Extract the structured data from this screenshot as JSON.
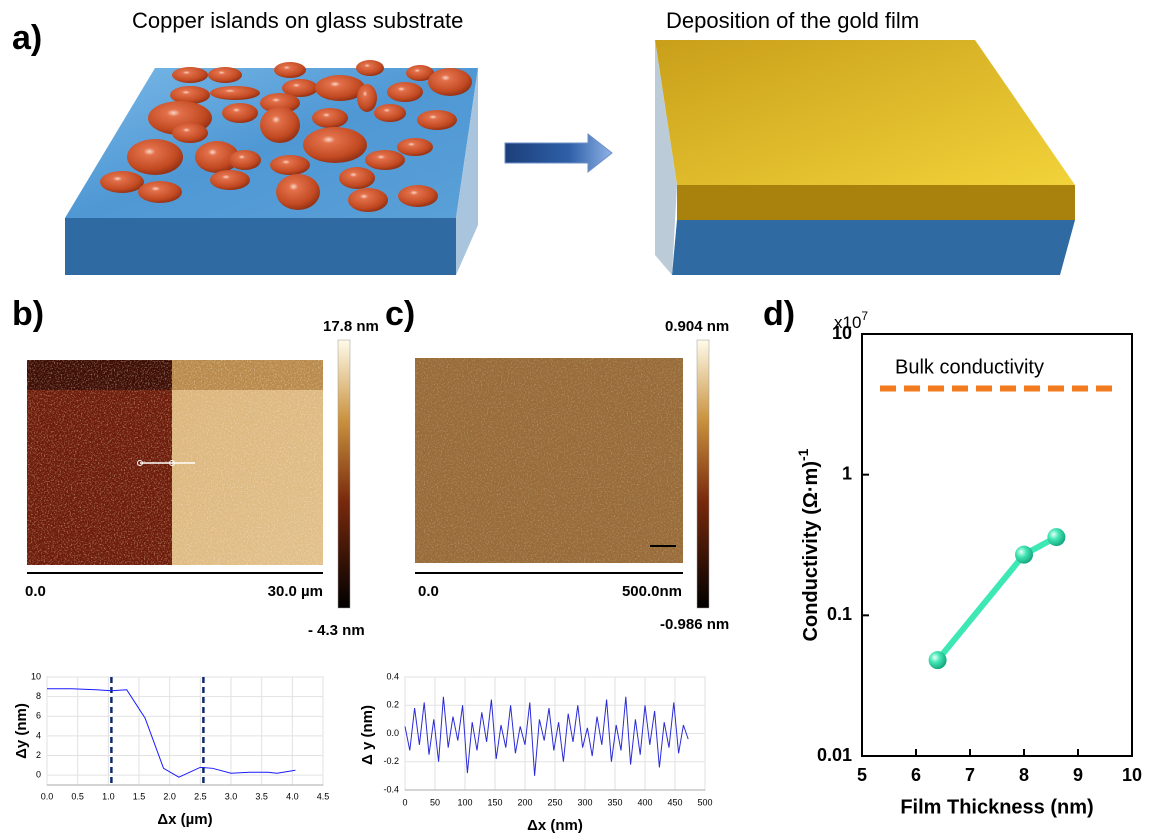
{
  "panel_labels": [
    "a)",
    "b)",
    "c)",
    "d)"
  ],
  "illustration": {
    "left_caption": "Copper islands on glass substrate",
    "right_caption": "Deposition of the gold film"
  },
  "afm_b": {
    "scale_max": "17.8 nm",
    "scale_min": "- 4.3 nm",
    "axis_start": "0.0",
    "axis_end": "30.0 µm"
  },
  "afm_c": {
    "scale_max": "0.904 nm",
    "scale_min": "-0.986 nm",
    "axis_start": "0.0",
    "axis_end": "500.0nm"
  },
  "chart_data": [
    {
      "type": "line",
      "x": [
        0,
        0.4,
        0.8,
        1.05,
        1.3,
        1.6,
        1.9,
        2.15,
        2.5,
        2.7,
        3.0,
        3.3,
        3.6,
        3.75,
        4.05
      ],
      "values": [
        8.8,
        8.8,
        8.7,
        8.6,
        8.7,
        5.8,
        0.7,
        -0.2,
        0.8,
        0.7,
        0.2,
        0.3,
        0.3,
        0.2,
        0.5
      ],
      "color": "#1a1aff",
      "xlabel": "Δx (µm)",
      "ylabel": "Δy (nm)",
      "xlim": [
        0,
        4.5
      ],
      "ylim": [
        -1,
        10
      ],
      "xticks": [
        {
          "value": 0,
          "label": "0.0"
        },
        0.5,
        {
          "value": 1,
          "label": "1.0"
        },
        1.5,
        {
          "value": 2,
          "label": "2.0"
        },
        2.5,
        {
          "value": 3,
          "label": "3.0"
        },
        3.5,
        {
          "value": 4,
          "label": "4.0"
        },
        4.5
      ],
      "yticks": [
        0,
        2,
        4,
        6,
        8,
        10
      ],
      "grid": true,
      "vlines": [
        1.05,
        2.55
      ],
      "vline_color": "#0d2a6b"
    },
    {
      "type": "line",
      "x": [
        0,
        8,
        16,
        24,
        32,
        40,
        48,
        56,
        64,
        72,
        80,
        88,
        96,
        104,
        112,
        120,
        128,
        136,
        144,
        152,
        160,
        168,
        176,
        184,
        192,
        200,
        208,
        216,
        224,
        232,
        240,
        248,
        256,
        264,
        272,
        280,
        288,
        296,
        304,
        312,
        320,
        328,
        336,
        344,
        352,
        360,
        368,
        376,
        384,
        392,
        400,
        408,
        416,
        424,
        432,
        440,
        448,
        456,
        464,
        472
      ],
      "values": [
        0.05,
        -0.12,
        0.18,
        -0.08,
        0.22,
        -0.15,
        0.1,
        -0.2,
        0.26,
        -0.1,
        0.12,
        -0.05,
        0.2,
        -0.28,
        0.08,
        -0.12,
        0.15,
        -0.06,
        0.24,
        -0.18,
        0.06,
        -0.1,
        0.2,
        -0.14,
        0.05,
        -0.08,
        0.22,
        -0.3,
        0.1,
        -0.05,
        0.18,
        -0.12,
        0.08,
        -0.2,
        0.14,
        -0.06,
        0.2,
        -0.1,
        0.04,
        -0.16,
        0.12,
        -0.08,
        0.24,
        -0.2,
        0.06,
        -0.12,
        0.26,
        -0.22,
        0.1,
        -0.15,
        0.2,
        -0.08,
        0.16,
        -0.24,
        0.08,
        -0.1,
        0.22,
        -0.14,
        0.06,
        -0.04
      ],
      "color": "#2b2bd6",
      "xlabel": "Δx (nm)",
      "ylabel": "Δ y (nm)",
      "xlim": [
        0,
        500
      ],
      "ylim": [
        -0.4,
        0.4
      ],
      "xticks": [
        0,
        50,
        100,
        150,
        200,
        250,
        300,
        350,
        400,
        450,
        500
      ],
      "yticks": [
        -0.4,
        -0.2,
        {
          "value": 0,
          "label": "0.0"
        },
        0.2,
        0.4
      ],
      "grid": true
    },
    {
      "type": "line",
      "markers": true,
      "x": [
        6.4,
        8.0,
        8.6
      ],
      "values": [
        0.048,
        0.27,
        0.36
      ],
      "color": "#3de8b5",
      "xlabel": "Film Thickness (nm)",
      "ylabel": "Conductivity  (Ω·m)",
      "ylabel_superscript": "-1",
      "y_multiplier": {
        "text": "x10",
        "exponent": "7"
      },
      "xlim": [
        5,
        10
      ],
      "ylim": [
        0.01,
        10
      ],
      "xticks": [
        5,
        6,
        7,
        8,
        9,
        10
      ],
      "yticks": [
        0.01,
        0.1,
        1,
        10
      ],
      "log_y": true,
      "grid": false,
      "reference_lines": [
        {
          "label": "Bulk conductivity",
          "value": 4.1,
          "color": "#f27a1f"
        }
      ]
    }
  ]
}
